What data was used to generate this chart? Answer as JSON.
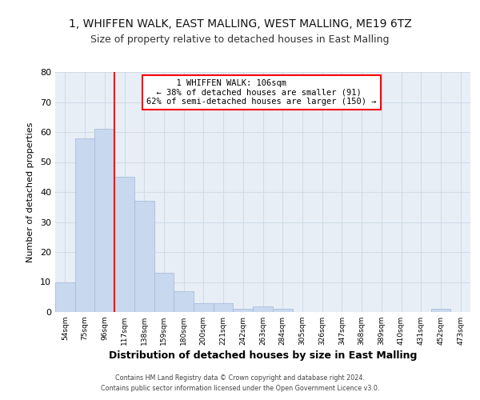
{
  "title_line1": "1, WHIFFEN WALK, EAST MALLING, WEST MALLING, ME19 6TZ",
  "title_line2": "Size of property relative to detached houses in East Malling",
  "xlabel": "Distribution of detached houses by size in East Malling",
  "ylabel": "Number of detached properties",
  "bar_color": "#c8d8ee",
  "bar_edge_color": "#a0b8d8",
  "categories": [
    "54sqm",
    "75sqm",
    "96sqm",
    "117sqm",
    "138sqm",
    "159sqm",
    "180sqm",
    "200sqm",
    "221sqm",
    "242sqm",
    "263sqm",
    "284sqm",
    "305sqm",
    "326sqm",
    "347sqm",
    "368sqm",
    "389sqm",
    "410sqm",
    "431sqm",
    "452sqm",
    "473sqm"
  ],
  "values": [
    10,
    58,
    61,
    45,
    37,
    13,
    7,
    3,
    3,
    1,
    2,
    1,
    0,
    0,
    0,
    0,
    0,
    0,
    0,
    1,
    0
  ],
  "ylim": [
    0,
    80
  ],
  "yticks": [
    0,
    10,
    20,
    30,
    40,
    50,
    60,
    70,
    80
  ],
  "property_label": "1 WHIFFEN WALK: 106sqm",
  "annotation_line1": "← 38% of detached houses are smaller (91)",
  "annotation_line2": "62% of semi-detached houses are larger (150) →",
  "vline_x_index": 2.5,
  "grid_color": "#d0dce8",
  "background_color": "#e8eef6",
  "footer_line1": "Contains HM Land Registry data © Crown copyright and database right 2024.",
  "footer_line2": "Contains public sector information licensed under the Open Government Licence v3.0."
}
